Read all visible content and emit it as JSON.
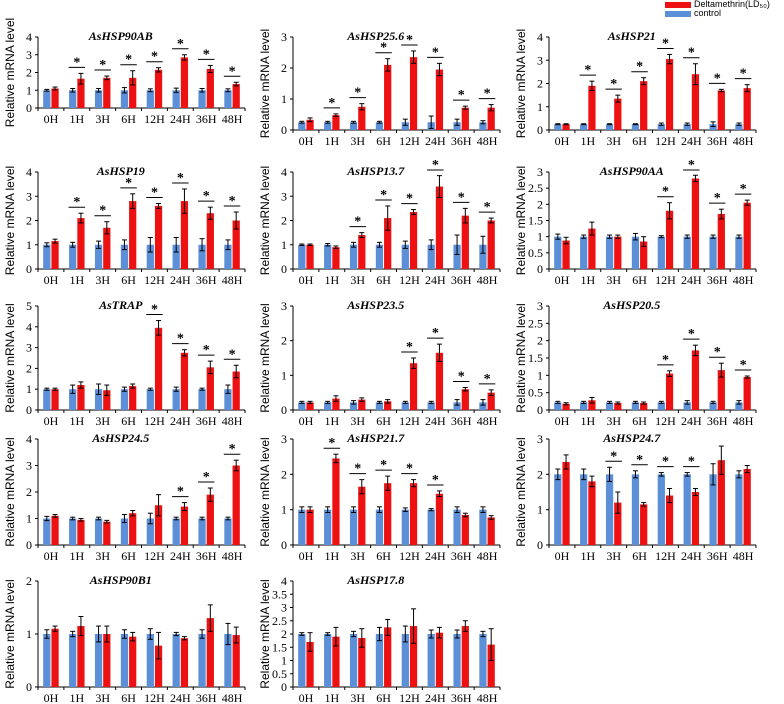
{
  "legend": {
    "treatment_label": "Deltamethrin(LD₅₀)",
    "control_label": "control"
  },
  "colors": {
    "treatment": "#ee1111",
    "control": "#5b8fd8",
    "axis": "#000000"
  },
  "chart_data": [
    {
      "type": "bar",
      "title": "AsHSP90AB",
      "ylabel": "Relative mRNA level",
      "ylim": [
        0,
        4
      ],
      "yticks": [
        0,
        1,
        2,
        3,
        4
      ],
      "categories": [
        "0H",
        "1H",
        "3H",
        "6H",
        "12H",
        "24H",
        "36H",
        "48H"
      ],
      "series": [
        {
          "name": "control",
          "values": [
            1,
            1,
            1,
            1,
            1,
            1,
            1,
            1
          ],
          "errors": [
            0.05,
            0.1,
            0.1,
            0.15,
            0.08,
            0.12,
            0.1,
            0.08
          ]
        },
        {
          "name": "Deltamethrin(LD50)",
          "values": [
            1.1,
            1.65,
            1.7,
            1.7,
            2.15,
            2.85,
            2.2,
            1.35
          ],
          "errors": [
            0.08,
            0.3,
            0.1,
            0.4,
            0.12,
            0.15,
            0.2,
            0.1
          ]
        }
      ],
      "significant": [
        false,
        true,
        true,
        true,
        true,
        true,
        true,
        true
      ]
    },
    {
      "type": "bar",
      "title": "AsHSP25.6",
      "ylabel": "Relative mRNA level",
      "ylim": [
        0,
        3
      ],
      "yticks": [
        0,
        1,
        2,
        3
      ],
      "categories": [
        "0H",
        "1H",
        "3H",
        "6H",
        "12H",
        "24H",
        "36H",
        "48H"
      ],
      "series": [
        {
          "name": "control",
          "values": [
            0.25,
            0.25,
            0.25,
            0.25,
            0.25,
            0.25,
            0.25,
            0.25
          ],
          "errors": [
            0.03,
            0.03,
            0.03,
            0.03,
            0.1,
            0.2,
            0.1,
            0.05
          ]
        },
        {
          "name": "Deltamethrin(LD50)",
          "values": [
            0.33,
            0.48,
            0.75,
            2.1,
            2.35,
            1.95,
            0.72,
            0.72
          ],
          "errors": [
            0.06,
            0.04,
            0.1,
            0.2,
            0.2,
            0.2,
            0.05,
            0.1
          ]
        }
      ],
      "significant": [
        false,
        true,
        true,
        true,
        true,
        true,
        true,
        true
      ]
    },
    {
      "type": "bar",
      "title": "AsHSP21",
      "ylabel": "Relative mRNA level",
      "ylim": [
        0,
        4
      ],
      "yticks": [
        0,
        1,
        2,
        3,
        4
      ],
      "categories": [
        "0H",
        "1H",
        "3H",
        "6H",
        "12H",
        "24H",
        "36H",
        "48H"
      ],
      "series": [
        {
          "name": "control",
          "values": [
            0.25,
            0.25,
            0.25,
            0.25,
            0.25,
            0.25,
            0.25,
            0.25
          ],
          "errors": [
            0.02,
            0.02,
            0.02,
            0.02,
            0.05,
            0.05,
            0.1,
            0.05
          ]
        },
        {
          "name": "Deltamethrin(LD50)",
          "values": [
            0.25,
            1.9,
            1.35,
            2.1,
            3.05,
            2.4,
            1.7,
            1.8
          ],
          "errors": [
            0.02,
            0.2,
            0.15,
            0.15,
            0.2,
            0.45,
            0.05,
            0.15
          ]
        }
      ],
      "significant": [
        false,
        true,
        true,
        true,
        true,
        true,
        true,
        true
      ]
    },
    {
      "type": "bar",
      "title": "AsHSP19",
      "ylabel": "Relative mRNA level",
      "ylim": [
        0,
        4
      ],
      "yticks": [
        0,
        1,
        2,
        3,
        4
      ],
      "categories": [
        "0H",
        "1H",
        "3H",
        "6H",
        "12H",
        "24H",
        "36H",
        "48H"
      ],
      "series": [
        {
          "name": "control",
          "values": [
            1,
            1,
            1,
            1,
            1,
            1,
            1,
            1
          ],
          "errors": [
            0.08,
            0.1,
            0.15,
            0.2,
            0.3,
            0.3,
            0.25,
            0.2
          ]
        },
        {
          "name": "Deltamethrin(LD50)",
          "values": [
            1.15,
            2.1,
            1.7,
            2.8,
            2.6,
            2.8,
            2.3,
            2.0
          ],
          "errors": [
            0.08,
            0.2,
            0.25,
            0.3,
            0.1,
            0.5,
            0.25,
            0.35
          ]
        }
      ],
      "significant": [
        false,
        true,
        true,
        true,
        true,
        true,
        true,
        true
      ]
    },
    {
      "type": "bar",
      "title": "AsHSP13.7",
      "ylabel": "Relative mRNA level",
      "ylim": [
        0,
        4
      ],
      "yticks": [
        0,
        1,
        2,
        3,
        4
      ],
      "categories": [
        "0H",
        "1H",
        "3H",
        "6H",
        "12H",
        "24H",
        "36H",
        "48H"
      ],
      "series": [
        {
          "name": "control",
          "values": [
            1,
            1,
            1,
            1,
            1,
            1,
            1,
            1
          ],
          "errors": [
            0.03,
            0.05,
            0.1,
            0.1,
            0.15,
            0.2,
            0.4,
            0.35
          ]
        },
        {
          "name": "Deltamethrin(LD50)",
          "values": [
            1.0,
            0.9,
            1.4,
            2.1,
            2.35,
            3.4,
            2.2,
            2.0
          ],
          "errors": [
            0.03,
            0.05,
            0.1,
            0.5,
            0.1,
            0.45,
            0.3,
            0.1
          ]
        }
      ],
      "significant": [
        false,
        false,
        true,
        true,
        true,
        true,
        true,
        true
      ]
    },
    {
      "type": "bar",
      "title": "AsHSP90AA",
      "ylabel": "Relative mRNA level",
      "ylim": [
        0,
        3
      ],
      "yticks": [
        0,
        0.5,
        1,
        1.5,
        2,
        2.5,
        3
      ],
      "categories": [
        "0H",
        "1H",
        "3H",
        "6H",
        "12H",
        "24H",
        "36H",
        "48H"
      ],
      "series": [
        {
          "name": "control",
          "values": [
            1,
            1,
            1,
            1,
            1,
            1,
            1,
            1
          ],
          "errors": [
            0.08,
            0.05,
            0.05,
            0.1,
            0.03,
            0.05,
            0.05,
            0.05
          ]
        },
        {
          "name": "Deltamethrin(LD50)",
          "values": [
            0.88,
            1.25,
            1.0,
            0.85,
            1.8,
            2.8,
            1.7,
            2.05
          ],
          "errors": [
            0.1,
            0.2,
            0.05,
            0.15,
            0.25,
            0.1,
            0.15,
            0.08
          ]
        }
      ],
      "significant": [
        false,
        false,
        false,
        false,
        true,
        true,
        true,
        true
      ]
    },
    {
      "type": "bar",
      "title": "AsTRAP",
      "ylabel": "Relative mRNA level",
      "ylim": [
        0,
        5
      ],
      "yticks": [
        0,
        1,
        2,
        3,
        4,
        5
      ],
      "categories": [
        "0H",
        "1H",
        "3H",
        "6H",
        "12H",
        "24H",
        "36H",
        "48H"
      ],
      "series": [
        {
          "name": "control",
          "values": [
            1,
            1,
            1,
            1,
            1,
            1,
            1,
            1
          ],
          "errors": [
            0.05,
            0.2,
            0.25,
            0.1,
            0.05,
            0.1,
            0.05,
            0.2
          ]
        },
        {
          "name": "Deltamethrin(LD50)",
          "values": [
            1.0,
            1.2,
            0.95,
            1.15,
            3.95,
            2.75,
            2.05,
            1.85
          ],
          "errors": [
            0.05,
            0.15,
            0.25,
            0.1,
            0.35,
            0.15,
            0.3,
            0.3
          ]
        }
      ],
      "significant": [
        false,
        false,
        false,
        false,
        true,
        true,
        true,
        true
      ]
    },
    {
      "type": "bar",
      "title": "AsHSP23.5",
      "ylabel": "Relative mRNA level",
      "ylim": [
        0,
        3
      ],
      "yticks": [
        0,
        1,
        2,
        3
      ],
      "categories": [
        "0H",
        "1H",
        "3H",
        "6H",
        "12H",
        "24H",
        "36H",
        "48H"
      ],
      "series": [
        {
          "name": "control",
          "values": [
            0.22,
            0.22,
            0.22,
            0.22,
            0.22,
            0.22,
            0.22,
            0.22
          ],
          "errors": [
            0.03,
            0.03,
            0.05,
            0.03,
            0.03,
            0.03,
            0.08,
            0.08
          ]
        },
        {
          "name": "Deltamethrin(LD50)",
          "values": [
            0.22,
            0.33,
            0.3,
            0.25,
            1.35,
            1.65,
            0.6,
            0.5
          ],
          "errors": [
            0.03,
            0.08,
            0.05,
            0.05,
            0.15,
            0.25,
            0.05,
            0.08
          ]
        }
      ],
      "significant": [
        false,
        false,
        false,
        false,
        true,
        true,
        true,
        true
      ]
    },
    {
      "type": "bar",
      "title": "AsHSP20.5",
      "ylabel": "Relative mRNA level",
      "ylim": [
        0,
        3
      ],
      "yticks": [
        0,
        0.5,
        1,
        1.5,
        2,
        2.5,
        3
      ],
      "categories": [
        "0H",
        "1H",
        "3H",
        "6H",
        "12H",
        "24H",
        "36H",
        "48H"
      ],
      "series": [
        {
          "name": "control",
          "values": [
            0.22,
            0.22,
            0.22,
            0.22,
            0.22,
            0.22,
            0.22,
            0.22
          ],
          "errors": [
            0.03,
            0.03,
            0.03,
            0.03,
            0.03,
            0.05,
            0.03,
            0.05
          ]
        },
        {
          "name": "Deltamethrin(LD50)",
          "values": [
            0.18,
            0.28,
            0.2,
            0.2,
            1.05,
            1.72,
            1.15,
            0.95
          ],
          "errors": [
            0.03,
            0.08,
            0.03,
            0.03,
            0.08,
            0.15,
            0.2,
            0.03
          ]
        }
      ],
      "significant": [
        false,
        false,
        false,
        false,
        true,
        true,
        true,
        true
      ]
    },
    {
      "type": "bar",
      "title": "AsHSP24.5",
      "ylabel": "Relative mRNA level",
      "ylim": [
        0,
        4
      ],
      "yticks": [
        0,
        1,
        2,
        3,
        4
      ],
      "categories": [
        "0H",
        "1H",
        "3H",
        "6H",
        "12H",
        "24H",
        "36H",
        "48H"
      ],
      "series": [
        {
          "name": "control",
          "values": [
            1,
            1,
            1,
            1,
            1,
            1,
            1,
            1
          ],
          "errors": [
            0.08,
            0.05,
            0.05,
            0.15,
            0.2,
            0.05,
            0.05,
            0.05
          ]
        },
        {
          "name": "Deltamethrin(LD50)",
          "values": [
            1.1,
            0.95,
            0.88,
            1.2,
            1.5,
            1.45,
            1.9,
            3.0
          ],
          "errors": [
            0.05,
            0.05,
            0.05,
            0.1,
            0.4,
            0.15,
            0.25,
            0.2
          ]
        }
      ],
      "significant": [
        false,
        false,
        false,
        false,
        false,
        true,
        true,
        true
      ]
    },
    {
      "type": "bar",
      "title": "AsHSP21.7",
      "ylabel": "Relative mRNA level",
      "ylim": [
        0,
        3
      ],
      "yticks": [
        0,
        1,
        2,
        3
      ],
      "categories": [
        "0H",
        "1H",
        "3H",
        "6H",
        "12H",
        "24H",
        "36H",
        "48H"
      ],
      "series": [
        {
          "name": "control",
          "values": [
            1,
            1,
            1,
            1,
            1,
            1,
            1,
            1
          ],
          "errors": [
            0.08,
            0.08,
            0.08,
            0.08,
            0.05,
            0.03,
            0.08,
            0.08
          ]
        },
        {
          "name": "Deltamethrin(LD50)",
          "values": [
            1.0,
            2.45,
            1.65,
            1.75,
            1.75,
            1.45,
            0.85,
            0.78
          ],
          "errors": [
            0.08,
            0.12,
            0.2,
            0.2,
            0.1,
            0.08,
            0.05,
            0.05
          ]
        }
      ],
      "significant": [
        false,
        true,
        true,
        true,
        true,
        true,
        false,
        false
      ]
    },
    {
      "type": "bar",
      "title": "AsHSP24.7",
      "ylabel": "Relative mRNA level",
      "ylim": [
        0,
        3
      ],
      "yticks": [
        0,
        1,
        2,
        3
      ],
      "categories": [
        "0H",
        "1H",
        "3H",
        "6H",
        "12H",
        "24H",
        "36H",
        "48H"
      ],
      "series": [
        {
          "name": "control",
          "values": [
            2,
            2,
            2,
            2,
            2,
            2,
            2,
            2
          ],
          "errors": [
            0.15,
            0.15,
            0.2,
            0.1,
            0.05,
            0.05,
            0.3,
            0.1
          ]
        },
        {
          "name": "Deltamethrin(LD50)",
          "values": [
            2.35,
            1.8,
            1.2,
            1.15,
            1.4,
            1.5,
            2.4,
            2.15
          ],
          "errors": [
            0.2,
            0.15,
            0.3,
            0.05,
            0.2,
            0.1,
            0.4,
            0.1
          ]
        }
      ],
      "significant": [
        false,
        false,
        true,
        true,
        true,
        true,
        false,
        false
      ]
    },
    {
      "type": "bar",
      "title": "AsHSP90B1",
      "ylabel": "Relative mRNA level",
      "ylim": [
        0,
        2
      ],
      "yticks": [
        0,
        1,
        2
      ],
      "categories": [
        "0H",
        "1H",
        "3H",
        "6H",
        "12H",
        "24H",
        "36H",
        "48H"
      ],
      "series": [
        {
          "name": "control",
          "values": [
            1,
            1,
            1,
            1,
            1,
            1,
            1,
            1
          ],
          "errors": [
            0.08,
            0.05,
            0.15,
            0.08,
            0.1,
            0.03,
            0.08,
            0.2
          ]
        },
        {
          "name": "Deltamethrin(LD50)",
          "values": [
            1.1,
            1.15,
            1.0,
            0.95,
            0.78,
            0.92,
            1.3,
            0.98
          ],
          "errors": [
            0.05,
            0.18,
            0.15,
            0.08,
            0.25,
            0.03,
            0.25,
            0.15
          ]
        }
      ],
      "significant": [
        false,
        false,
        false,
        false,
        false,
        false,
        false,
        false
      ]
    },
    {
      "type": "bar",
      "title": "AsHSP17.8",
      "ylabel": "Relative mRNA level",
      "ylim": [
        0,
        4
      ],
      "yticks": [
        0,
        0.5,
        1,
        1.5,
        2,
        2.5,
        3,
        3.5,
        4
      ],
      "categories": [
        "0H",
        "1H",
        "3H",
        "6H",
        "12H",
        "24H",
        "36H",
        "48H"
      ],
      "series": [
        {
          "name": "control",
          "values": [
            2,
            2,
            2,
            2,
            2,
            2,
            2,
            2
          ],
          "errors": [
            0.05,
            0.05,
            0.1,
            0.25,
            0.3,
            0.15,
            0.15,
            0.1
          ]
        },
        {
          "name": "Deltamethrin(LD50)",
          "values": [
            1.7,
            1.9,
            1.85,
            2.25,
            2.3,
            2.05,
            2.3,
            1.6
          ],
          "errors": [
            0.35,
            0.35,
            0.35,
            0.3,
            0.65,
            0.2,
            0.2,
            0.6
          ]
        }
      ],
      "significant": [
        false,
        false,
        false,
        false,
        false,
        false,
        false,
        false
      ]
    }
  ]
}
